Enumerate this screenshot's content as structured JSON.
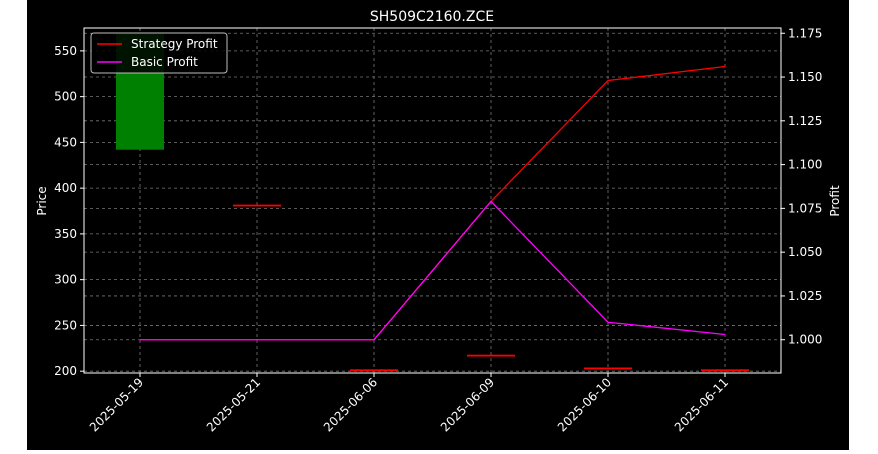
{
  "chart_data": {
    "type": "candlestick+line",
    "title": "SH509C2160.ZCE",
    "categories": [
      "2025-05-19",
      "2025-05-21",
      "2025-06-06",
      "2025-06-09",
      "2025-06-10",
      "2025-06-11"
    ],
    "price_axis": {
      "label": "Price",
      "ylim": [
        198,
        575
      ],
      "ticks": [
        200,
        250,
        300,
        350,
        400,
        450,
        500,
        550
      ]
    },
    "profit_axis": {
      "label": "Profit",
      "ylim": [
        0.981,
        1.178
      ],
      "ticks": [
        "1.000",
        "1.025",
        "1.050",
        "1.075",
        "1.100",
        "1.125",
        "1.150",
        "1.175"
      ]
    },
    "candles": [
      {
        "date": "2025-05-19",
        "open": 442,
        "close": 570,
        "high": 570,
        "low": 442,
        "color": "#008000"
      },
      {
        "date": "2025-05-21",
        "open": 382,
        "close": 382,
        "high": 382,
        "low": 382,
        "color": "#ff0000"
      },
      {
        "date": "2025-06-06",
        "open": 202,
        "close": 202,
        "high": 202,
        "low": 202,
        "color": "#ff0000"
      },
      {
        "date": "2025-06-09",
        "open": 218,
        "close": 218,
        "high": 218,
        "low": 218,
        "color": "#ff0000"
      },
      {
        "date": "2025-06-10",
        "open": 204,
        "close": 204,
        "high": 204,
        "low": 204,
        "color": "#ff0000"
      },
      {
        "date": "2025-06-11",
        "open": 202,
        "close": 202,
        "high": 202,
        "low": 202,
        "color": "#ff0000"
      }
    ],
    "series": [
      {
        "name": "Strategy Profit",
        "color": "#ff0000",
        "values": [
          1.0,
          1.0,
          1.0,
          1.079,
          1.148,
          1.156
        ]
      },
      {
        "name": "Basic Profit",
        "color": "#ff00ff",
        "values": [
          1.0,
          1.0,
          1.0,
          1.079,
          1.01,
          1.003
        ]
      }
    ],
    "grid": true,
    "legend": "top-left"
  }
}
